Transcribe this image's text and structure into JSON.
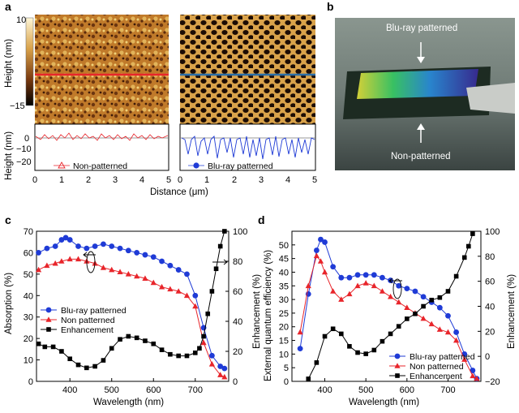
{
  "panel_labels": {
    "a": "a",
    "b": "b",
    "c": "c",
    "d": "d"
  },
  "panel_a": {
    "colorbar": {
      "label": "Height (nm)",
      "max_label": "10",
      "min_label": "−15"
    },
    "profile_ylabel": "Height (nm)",
    "xlabel": "Distance (μm)",
    "x_ticks": [
      "0",
      "1",
      "2",
      "3",
      "4",
      "5"
    ],
    "y_ticks": [
      "0",
      "−10",
      "−20"
    ],
    "left_legend": "Non-patterned",
    "right_legend": "Blu-ray patterned"
  },
  "panel_b": {
    "top_label": "Blu-ray patterned",
    "bottom_label": "Non-patterned"
  },
  "colors": {
    "non_patterned": "#e8252b",
    "blu_ray": "#1f3bd6",
    "enhancement": "#000000"
  },
  "chart_data": [
    {
      "panel": "c",
      "type": "line",
      "xlabel": "Wavelength (nm)",
      "ylabel": "Absorption (%)",
      "y2label": "Enhancement (%)",
      "xlim": [
        320,
        780
      ],
      "ylim": [
        0,
        70
      ],
      "y2lim": [
        0,
        100
      ],
      "x_ticks": [
        "400",
        "500",
        "600",
        "700"
      ],
      "y_ticks": [
        "0",
        "10",
        "20",
        "30",
        "40",
        "50",
        "60",
        "70"
      ],
      "y2_ticks": [
        "0",
        "20",
        "40",
        "60",
        "80",
        "100"
      ],
      "legend_position": "center-left",
      "series": [
        {
          "name": "Blu-ray patterned",
          "axis": "left",
          "marker": "circle",
          "x": [
            325,
            345,
            365,
            380,
            390,
            400,
            420,
            440,
            460,
            480,
            500,
            520,
            540,
            560,
            580,
            600,
            620,
            640,
            660,
            680,
            700,
            720,
            740,
            760,
            770
          ],
          "y": [
            60,
            62,
            63,
            66,
            67,
            66,
            63,
            62,
            63,
            64,
            63,
            62,
            61,
            60,
            59,
            58,
            56,
            54,
            52,
            50,
            40,
            25,
            12,
            7,
            6
          ]
        },
        {
          "name": "Non patterned",
          "axis": "left",
          "marker": "triangle",
          "x": [
            325,
            345,
            365,
            380,
            400,
            420,
            440,
            460,
            480,
            500,
            520,
            540,
            560,
            580,
            600,
            620,
            640,
            660,
            680,
            700,
            720,
            740,
            760,
            770
          ],
          "y": [
            52,
            54,
            55,
            56,
            57,
            57,
            56,
            55,
            53,
            52,
            51,
            50,
            49,
            48,
            46,
            44,
            43,
            42,
            40,
            35,
            18,
            8,
            3,
            2
          ]
        },
        {
          "name": "Enhancement",
          "axis": "right",
          "marker": "square",
          "x": [
            325,
            340,
            360,
            380,
            400,
            420,
            440,
            460,
            480,
            500,
            520,
            540,
            560,
            580,
            600,
            620,
            640,
            660,
            680,
            700,
            710,
            720,
            730,
            740,
            750,
            760,
            770
          ],
          "y": [
            25,
            23,
            23,
            20,
            15,
            11,
            9,
            10,
            14,
            22,
            28,
            30,
            29,
            27,
            25,
            21,
            18,
            17,
            17,
            19,
            22,
            30,
            45,
            60,
            75,
            90,
            100
          ]
        }
      ]
    },
    {
      "panel": "d",
      "type": "line",
      "xlabel": "Wavelength (nm)",
      "ylabel": "External quantum efficiency (%)",
      "y2label": "Enhancement (%)",
      "xlim": [
        320,
        780
      ],
      "ylim": [
        0,
        55
      ],
      "y2lim": [
        -20,
        100
      ],
      "x_ticks": [
        "400",
        "500",
        "600",
        "700"
      ],
      "y_ticks": [
        "0",
        "5",
        "10",
        "15",
        "20",
        "25",
        "30",
        "35",
        "40",
        "45",
        "50"
      ],
      "y2_ticks": [
        "−20",
        "0",
        "20",
        "40",
        "60",
        "80",
        "100"
      ],
      "legend_position": "bottom-right",
      "series": [
        {
          "name": "Blu-ray patterned",
          "axis": "left",
          "marker": "circle",
          "x": [
            340,
            360,
            380,
            390,
            400,
            420,
            440,
            460,
            480,
            500,
            520,
            540,
            560,
            580,
            600,
            620,
            640,
            660,
            680,
            700,
            720,
            740,
            760,
            770
          ],
          "y": [
            12,
            32,
            48,
            52,
            51,
            42,
            38,
            38,
            39,
            39,
            39,
            38,
            37,
            35,
            34,
            33,
            31,
            29,
            27,
            24,
            18,
            10,
            4,
            1
          ]
        },
        {
          "name": "Non patterned",
          "axis": "left",
          "marker": "triangle",
          "x": [
            340,
            360,
            380,
            390,
            400,
            420,
            440,
            460,
            480,
            500,
            520,
            540,
            560,
            580,
            600,
            620,
            640,
            660,
            680,
            700,
            720,
            740,
            760,
            770
          ],
          "y": [
            18,
            35,
            46,
            44,
            40,
            33,
            30,
            32,
            35,
            36,
            35,
            33,
            31,
            29,
            27,
            25,
            23,
            21,
            19,
            18,
            15,
            8,
            2,
            1
          ]
        },
        {
          "name": "Enhancement",
          "axis": "right",
          "marker": "square",
          "x": [
            360,
            380,
            400,
            420,
            440,
            460,
            480,
            500,
            520,
            540,
            560,
            580,
            600,
            620,
            640,
            660,
            680,
            700,
            720,
            740,
            750,
            760
          ],
          "y": [
            -18,
            -5,
            16,
            22,
            18,
            8,
            3,
            2,
            5,
            12,
            18,
            24,
            30,
            34,
            40,
            45,
            47,
            52,
            64,
            79,
            88,
            98
          ]
        }
      ]
    }
  ]
}
